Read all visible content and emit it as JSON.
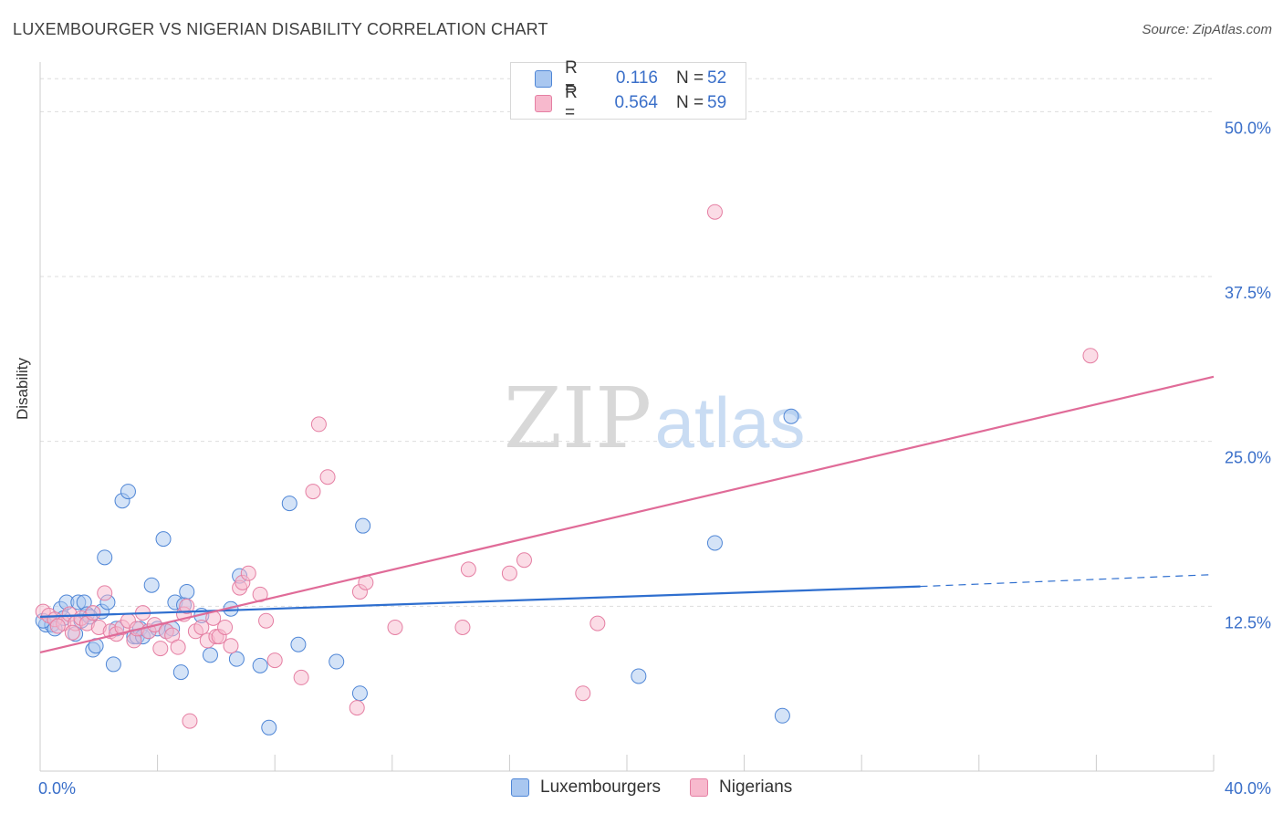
{
  "title": "LUXEMBOURGER VS NIGERIAN DISABILITY CORRELATION CHART",
  "source": "Source: ZipAtlas.com",
  "watermark": {
    "zip": "ZIP",
    "atlas": "atlas"
  },
  "legend": {
    "rows": [
      {
        "r_label": "R =",
        "r_value": "0.116",
        "n_label": "N =",
        "n_value": "52"
      },
      {
        "r_label": "R =",
        "r_value": "0.564",
        "n_label": "N =",
        "n_value": "59"
      }
    ]
  },
  "bottom_legend": {
    "lux": "Luxembourgers",
    "nig": "Nigerians"
  },
  "colors": {
    "lux_fill": "#a9c7f0",
    "lux_stroke": "#4f86d6",
    "lux_line": "#2f6fcf",
    "nig_fill": "#f7b9cd",
    "nig_stroke": "#e57fa3",
    "nig_line": "#e06b98",
    "axis_text": "#3a6fc9",
    "grid": "#dddddd"
  },
  "chart_data": {
    "type": "scatter",
    "title": "LUXEMBOURGER VS NIGERIAN DISABILITY CORRELATION CHART",
    "ylabel": "Disability",
    "xlabel": "",
    "xlim": [
      0,
      40
    ],
    "ylim": [
      0,
      50
    ],
    "x_tick_labels": [
      "0.0%",
      "40.0%"
    ],
    "y_ticks": [
      12.5,
      25.0,
      37.5,
      50.0
    ],
    "y_tick_labels": [
      "12.5%",
      "25.0%",
      "37.5%",
      "50.0%"
    ],
    "grid": true,
    "series": [
      {
        "name": "Luxembourgers",
        "R": 0.116,
        "N": 52,
        "trend": {
          "x0": 0,
          "y0": 11.7,
          "x1": 30,
          "y1": 14.0,
          "dash_to_x": 40,
          "dash_to_y": 14.9
        },
        "points": [
          [
            0.2,
            11.1
          ],
          [
            0.4,
            11.1
          ],
          [
            0.5,
            10.8
          ],
          [
            0.7,
            12.3
          ],
          [
            0.8,
            11.6
          ],
          [
            0.9,
            12.8
          ],
          [
            1.2,
            10.4
          ],
          [
            1.3,
            12.8
          ],
          [
            1.4,
            11.4
          ],
          [
            1.5,
            12.8
          ],
          [
            1.6,
            11.9
          ],
          [
            1.8,
            9.2
          ],
          [
            1.9,
            9.5
          ],
          [
            2.1,
            12.1
          ],
          [
            2.2,
            16.2
          ],
          [
            2.3,
            12.8
          ],
          [
            2.5,
            8.1
          ],
          [
            2.6,
            10.8
          ],
          [
            2.8,
            20.5
          ],
          [
            3.0,
            21.2
          ],
          [
            3.2,
            10.2
          ],
          [
            3.3,
            10.2
          ],
          [
            3.4,
            10.8
          ],
          [
            3.5,
            10.2
          ],
          [
            3.7,
            10.6
          ],
          [
            3.8,
            14.1
          ],
          [
            4.0,
            10.8
          ],
          [
            4.2,
            17.6
          ],
          [
            4.3,
            10.6
          ],
          [
            4.5,
            10.8
          ],
          [
            4.6,
            12.8
          ],
          [
            4.8,
            7.5
          ],
          [
            4.9,
            12.6
          ],
          [
            5.0,
            13.6
          ],
          [
            5.5,
            11.8
          ],
          [
            5.8,
            8.8
          ],
          [
            6.5,
            12.3
          ],
          [
            6.7,
            8.5
          ],
          [
            6.8,
            14.8
          ],
          [
            7.5,
            8.0
          ],
          [
            7.8,
            3.3
          ],
          [
            8.5,
            20.3
          ],
          [
            8.8,
            9.6
          ],
          [
            10.1,
            8.3
          ],
          [
            10.9,
            5.9
          ],
          [
            11.0,
            18.6
          ],
          [
            20.4,
            7.2
          ],
          [
            23.0,
            17.3
          ],
          [
            25.3,
            4.2
          ],
          [
            25.6,
            26.9
          ],
          [
            0.1,
            11.4
          ],
          [
            1.7,
            11.7
          ]
        ]
      },
      {
        "name": "Nigerians",
        "R": 0.564,
        "N": 59,
        "trend": {
          "x0": 0,
          "y0": 9.0,
          "x1": 40,
          "y1": 29.9
        },
        "points": [
          [
            0.1,
            12.1
          ],
          [
            0.3,
            11.8
          ],
          [
            0.5,
            11.5
          ],
          [
            0.8,
            11.2
          ],
          [
            1.0,
            11.9
          ],
          [
            1.2,
            11.2
          ],
          [
            1.4,
            11.6
          ],
          [
            1.6,
            11.2
          ],
          [
            1.8,
            12.0
          ],
          [
            2.0,
            10.9
          ],
          [
            2.2,
            13.5
          ],
          [
            2.4,
            10.6
          ],
          [
            2.6,
            10.4
          ],
          [
            2.8,
            10.9
          ],
          [
            3.0,
            11.4
          ],
          [
            3.2,
            9.9
          ],
          [
            3.3,
            10.8
          ],
          [
            3.5,
            12.0
          ],
          [
            3.7,
            10.6
          ],
          [
            3.9,
            11.1
          ],
          [
            4.1,
            9.3
          ],
          [
            4.3,
            10.6
          ],
          [
            4.5,
            10.3
          ],
          [
            4.7,
            9.4
          ],
          [
            4.9,
            11.9
          ],
          [
            5.0,
            12.5
          ],
          [
            5.1,
            3.8
          ],
          [
            5.3,
            10.6
          ],
          [
            5.5,
            10.9
          ],
          [
            5.7,
            9.9
          ],
          [
            5.9,
            11.6
          ],
          [
            6.0,
            10.2
          ],
          [
            6.1,
            10.2
          ],
          [
            6.3,
            10.9
          ],
          [
            6.5,
            9.5
          ],
          [
            6.8,
            13.9
          ],
          [
            6.9,
            14.3
          ],
          [
            7.1,
            15.0
          ],
          [
            7.5,
            13.4
          ],
          [
            7.7,
            11.4
          ],
          [
            8.0,
            8.4
          ],
          [
            8.9,
            7.1
          ],
          [
            9.3,
            21.2
          ],
          [
            9.5,
            26.3
          ],
          [
            9.8,
            22.3
          ],
          [
            10.8,
            4.8
          ],
          [
            10.9,
            13.6
          ],
          [
            11.1,
            14.3
          ],
          [
            12.1,
            10.9
          ],
          [
            14.4,
            10.9
          ],
          [
            14.6,
            15.3
          ],
          [
            16.0,
            15.0
          ],
          [
            16.5,
            16.0
          ],
          [
            18.5,
            5.9
          ],
          [
            19.0,
            11.2
          ],
          [
            23.0,
            42.4
          ],
          [
            35.8,
            31.5
          ],
          [
            0.6,
            11.0
          ],
          [
            1.1,
            10.5
          ]
        ]
      }
    ]
  }
}
